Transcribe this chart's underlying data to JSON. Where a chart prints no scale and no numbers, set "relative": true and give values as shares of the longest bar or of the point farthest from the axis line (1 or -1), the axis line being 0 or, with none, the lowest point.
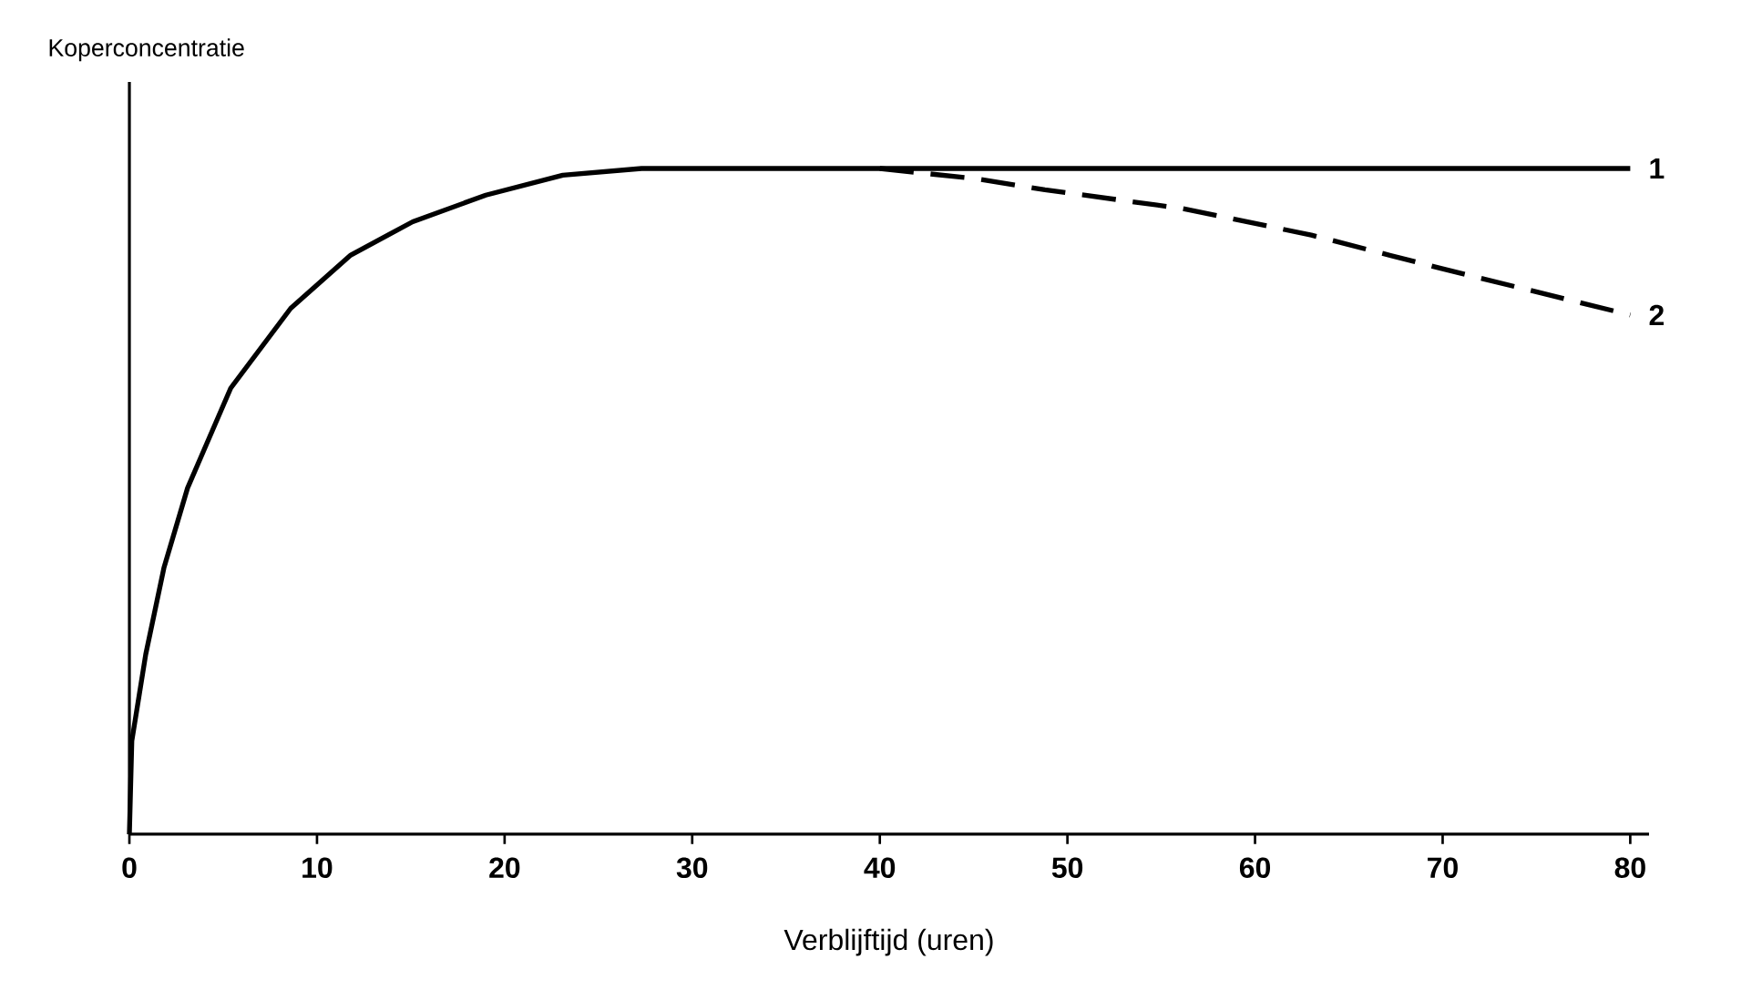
{
  "chart_data": {
    "type": "line",
    "relative": true,
    "xlabel": "Verblijftijd (uren)",
    "ylabel": "Koperconcentratie",
    "xlim": [
      0,
      81
    ],
    "xticks": [
      0,
      10,
      20,
      30,
      40,
      50,
      60,
      70,
      80
    ],
    "grid": false,
    "legend": false,
    "series": [
      {
        "name": "1",
        "color": "#000000",
        "line_style": "solid",
        "x": [
          0,
          0.13,
          0.87,
          1.84,
          3.1,
          5.4,
          8.6,
          11.8,
          15.1,
          19.0,
          23.1,
          27.3,
          35,
          45,
          60,
          80
        ],
        "values": [
          0,
          0.14,
          0.27,
          0.4,
          0.52,
          0.67,
          0.79,
          0.87,
          0.92,
          0.96,
          0.99,
          1.0,
          1.0,
          1.0,
          1.0,
          1.0
        ]
      },
      {
        "name": "2",
        "color": "#000000",
        "line_style": "dashed",
        "x": [
          40,
          45.3,
          48.8,
          56.1,
          63,
          69.9,
          80
        ],
        "values": [
          1.0,
          0.984,
          0.968,
          0.94,
          0.9,
          0.85,
          0.78
        ]
      }
    ]
  }
}
